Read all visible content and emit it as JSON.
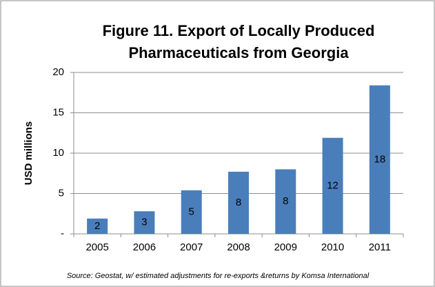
{
  "chart_data": {
    "type": "bar",
    "title": [
      "Figure 11. Export of  Locally Produced",
      "Pharmaceuticals from Georgia"
    ],
    "y_label": "USD millions",
    "source": "Source: Geostat, w/ estimated adjustments for re-exports &returns by Komsa International",
    "categories": [
      "2005",
      "2006",
      "2007",
      "2008",
      "2009",
      "2010",
      "2011"
    ],
    "values": [
      1.9,
      2.8,
      5.4,
      7.7,
      8.0,
      11.9,
      18.4
    ],
    "value_labels": [
      "2",
      "3",
      "5",
      "8",
      "8",
      "12",
      "18"
    ],
    "color": "#4a7ebb",
    "ylim": [
      0,
      20
    ],
    "yticks": [
      {
        "value": 0,
        "label": "-"
      },
      5,
      10,
      15,
      20
    ],
    "grid": true
  }
}
